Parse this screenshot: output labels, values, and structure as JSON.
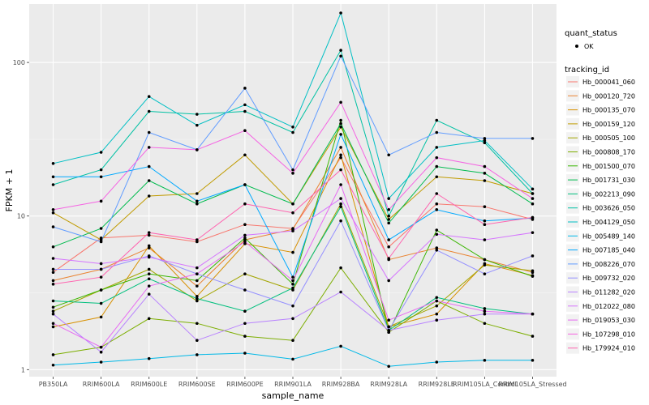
{
  "chart_data": {
    "type": "line",
    "xlabel": "sample_name",
    "ylabel": "FPKM + 1",
    "y_scale": "log10",
    "ylim": [
      0.9,
      240
    ],
    "y_ticks": [
      1,
      10,
      100
    ],
    "y_tick_labels": [
      "1",
      "10",
      "100"
    ],
    "grid": true,
    "legend_position": "right",
    "categories": [
      "PB350LA",
      "RRIM600LA",
      "RRIM600LE",
      "RRIM600SE",
      "RRIM600PE",
      "RRIM901LA",
      "RRIM928BA",
      "RRIM928LA",
      "RRIM928LE",
      "RRIM105LA_Control",
      "RRIM105LA_Stressed"
    ],
    "legend_quant": {
      "title": "quant_status",
      "entries": [
        "OK"
      ]
    },
    "legend_tracking": {
      "title": "tracking_id"
    },
    "series": [
      {
        "name": "Hb_000041_060",
        "color": "#F8766D",
        "values": [
          4.3,
          7.2,
          7.5,
          6.8,
          8.8,
          8.3,
          24,
          6.3,
          12,
          11.5,
          9.5
        ]
      },
      {
        "name": "Hb_000120_720",
        "color": "#EA8331",
        "values": [
          3.8,
          4.5,
          6.2,
          3.5,
          7,
          8.2,
          28,
          5.2,
          6.2,
          5.2,
          4.3
        ]
      },
      {
        "name": "Hb_000135_070",
        "color": "#D89000",
        "values": [
          1.9,
          2.2,
          6.4,
          3,
          6.6,
          5.8,
          25,
          1.9,
          2.3,
          4.9,
          4.1
        ]
      },
      {
        "name": "Hb_000159_120",
        "color": "#C09B00",
        "values": [
          10.5,
          7,
          13.5,
          14,
          25,
          12,
          38,
          9.5,
          18,
          17,
          14
        ]
      },
      {
        "name": "Hb_000505_100",
        "color": "#A3A500",
        "values": [
          2.4,
          3.3,
          4.5,
          2.8,
          4.2,
          3.3,
          12,
          1.9,
          2.6,
          4.8,
          4.4
        ]
      },
      {
        "name": "Hb_000808_170",
        "color": "#7CAE00",
        "values": [
          1.25,
          1.4,
          2.15,
          2,
          1.65,
          1.55,
          4.6,
          1.75,
          2.8,
          2,
          1.65
        ]
      },
      {
        "name": "Hb_001500_070",
        "color": "#39B600",
        "values": [
          2.55,
          3.3,
          4.2,
          3.8,
          7.2,
          3.6,
          42,
          1.75,
          8.1,
          5.2,
          4.05
        ]
      },
      {
        "name": "Hb_001731_030",
        "color": "#00BB4E",
        "values": [
          6.3,
          8.3,
          17,
          12,
          16,
          12,
          40,
          9,
          21,
          19,
          12
        ]
      },
      {
        "name": "Hb_002213_090",
        "color": "#00BF7D",
        "values": [
          2.8,
          2.7,
          3.9,
          2.9,
          2.4,
          3.4,
          11.5,
          1.8,
          2.95,
          2.5,
          2.3
        ]
      },
      {
        "name": "Hb_003626_050",
        "color": "#00C1A3",
        "values": [
          16,
          20,
          48,
          46,
          48,
          35,
          120,
          10,
          42,
          30,
          14
        ]
      },
      {
        "name": "Hb_004129_050",
        "color": "#00BFC4",
        "values": [
          22,
          26,
          60,
          39,
          53,
          38,
          210,
          13,
          28,
          31,
          15
        ]
      },
      {
        "name": "Hb_005489_140",
        "color": "#00B8E7",
        "values": [
          1.07,
          1.12,
          1.18,
          1.25,
          1.28,
          1.17,
          1.42,
          1.05,
          1.12,
          1.15,
          1.15
        ]
      },
      {
        "name": "Hb_007185_040",
        "color": "#00A9FF",
        "values": [
          18,
          18,
          21,
          12.5,
          16,
          4,
          34,
          7,
          11,
          9.3,
          9.7
        ]
      },
      {
        "name": "Hb_008226_070",
        "color": "#619CFF",
        "values": [
          8.5,
          6.8,
          35,
          27,
          68,
          20,
          110,
          25,
          35,
          32,
          32
        ]
      },
      {
        "name": "Hb_009732_020",
        "color": "#9590FF",
        "values": [
          4.5,
          4.5,
          5.5,
          4.2,
          3.3,
          2.6,
          9.3,
          1.8,
          6,
          4.2,
          5.5
        ]
      },
      {
        "name": "Hb_011282_020",
        "color": "#B983FF",
        "values": [
          2.3,
          1.3,
          3.1,
          1.55,
          2,
          2.15,
          3.2,
          1.8,
          2.1,
          2.3,
          2.3
        ]
      },
      {
        "name": "Hb_012022_080",
        "color": "#D575FE",
        "values": [
          5.3,
          4.9,
          5.4,
          4.6,
          7.5,
          8,
          13,
          3.8,
          7.6,
          7,
          7.8
        ]
      },
      {
        "name": "Hb_019053_030",
        "color": "#E76BF3",
        "values": [
          2,
          1.4,
          3.5,
          4.2,
          6.8,
          3.8,
          16,
          2.1,
          2.8,
          2.4,
          2.3
        ]
      },
      {
        "name": "Hb_107298_010",
        "color": "#F564E3",
        "values": [
          11,
          12.5,
          28,
          27,
          36,
          19,
          55,
          11,
          24,
          21,
          13
        ]
      },
      {
        "name": "Hb_179924_010",
        "color": "#FF64B0",
        "values": [
          3.6,
          4,
          7.8,
          7,
          12,
          10.5,
          20,
          5.3,
          14,
          8.8,
          9.8
        ]
      }
    ]
  }
}
